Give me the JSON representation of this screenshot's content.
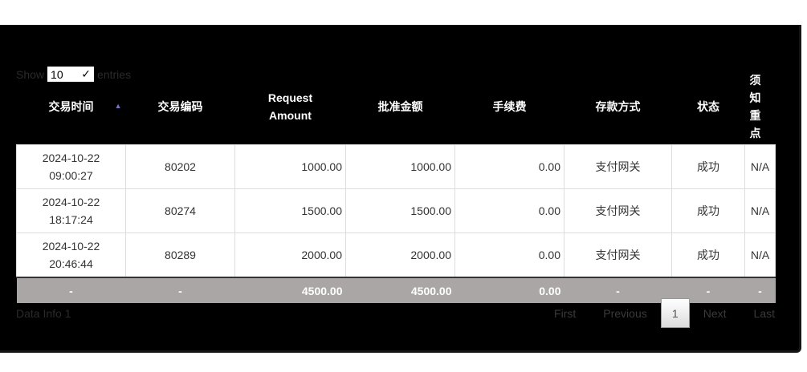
{
  "length": {
    "show": "Show",
    "value": "10",
    "entries": "entries"
  },
  "columns": [
    "交易时间",
    "交易编码",
    "Request Amount",
    "批准金额",
    "手续费",
    "存款方式",
    "状态",
    "须知重点"
  ],
  "rows": [
    [
      "2024-10-22 09:00:27",
      "80202",
      "1000.00",
      "1000.00",
      "0.00",
      "支付网关",
      "成功",
      "N/A"
    ],
    [
      "2024-10-22 18:17:24",
      "80274",
      "1500.00",
      "1500.00",
      "0.00",
      "支付网关",
      "成功",
      "N/A"
    ],
    [
      "2024-10-22 20:46:44",
      "80289",
      "2000.00",
      "2000.00",
      "0.00",
      "支付网关",
      "成功",
      "N/A"
    ]
  ],
  "footer": [
    "-",
    "-",
    "4500.00",
    "4500.00",
    "0.00",
    "-",
    "-",
    "-"
  ],
  "info": "Data Info 1",
  "pagination": {
    "first": "First",
    "previous": "Previous",
    "current": "1",
    "next": "Next",
    "last": "Last"
  }
}
